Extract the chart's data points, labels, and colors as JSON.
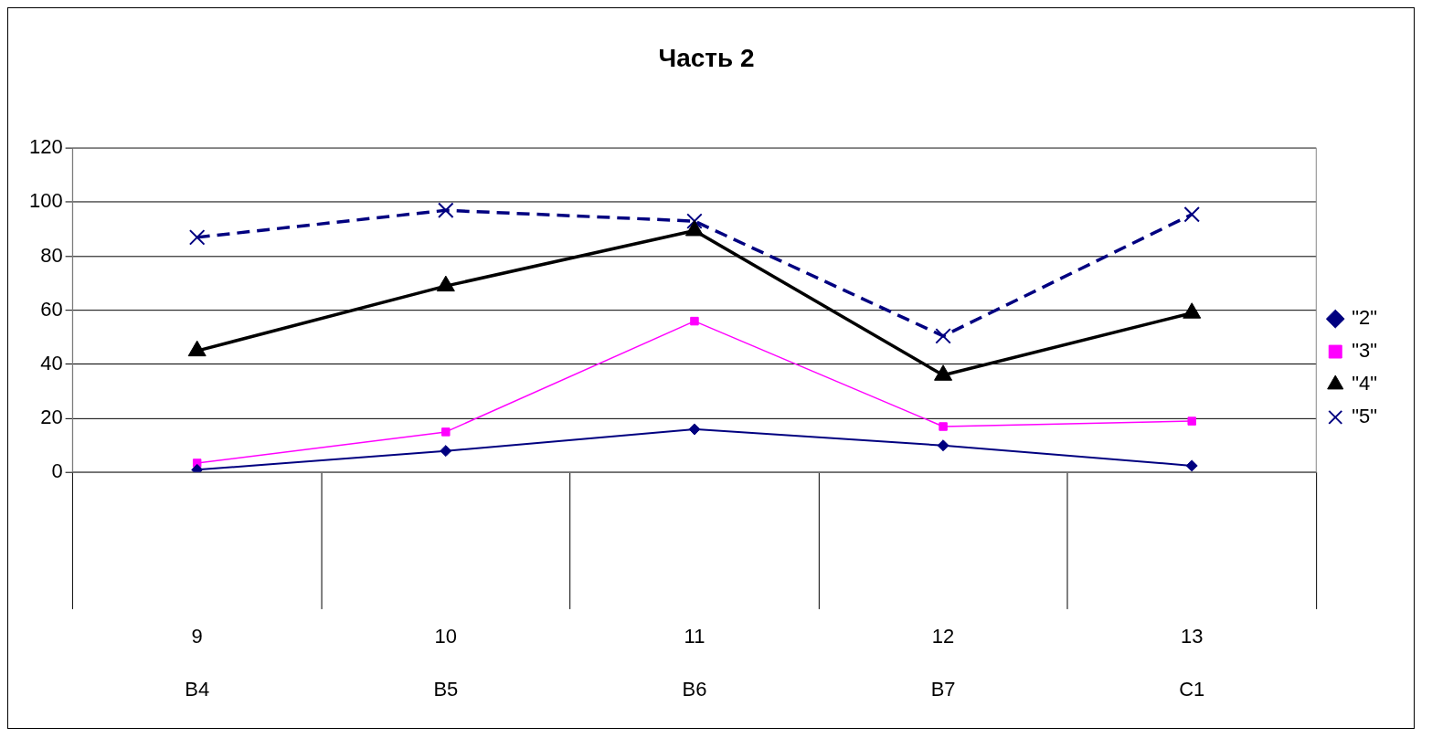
{
  "chart_data": {
    "type": "line",
    "title": "Часть 2",
    "categories": [
      "9\nB4",
      "10\nB5",
      "11\nB6",
      "12\nB7",
      "13\nC1"
    ],
    "series": [
      {
        "name": "\"2\"",
        "color": "#000080",
        "values": [
          1,
          8,
          16,
          10,
          2.5
        ],
        "marker": "diamond",
        "line_style": "solid"
      },
      {
        "name": "\"3\"",
        "color": "#ff00ff",
        "values": [
          3.5,
          15,
          56,
          17,
          19
        ],
        "marker": "square",
        "line_style": "solid"
      },
      {
        "name": "\"4\"",
        "color": "#000000",
        "values": [
          45,
          69,
          89.5,
          36,
          59
        ],
        "marker": "triangle",
        "line_style": "solid"
      },
      {
        "name": "\"5\"",
        "color": "#000080",
        "values": [
          87,
          97,
          93,
          50.5,
          95.5
        ],
        "marker": "cross",
        "line_style": "dashed"
      }
    ],
    "ylim": [
      0,
      120
    ],
    "yticks": [
      0,
      20,
      40,
      60,
      80,
      100,
      120
    ],
    "grid": "y",
    "legend": "right"
  }
}
